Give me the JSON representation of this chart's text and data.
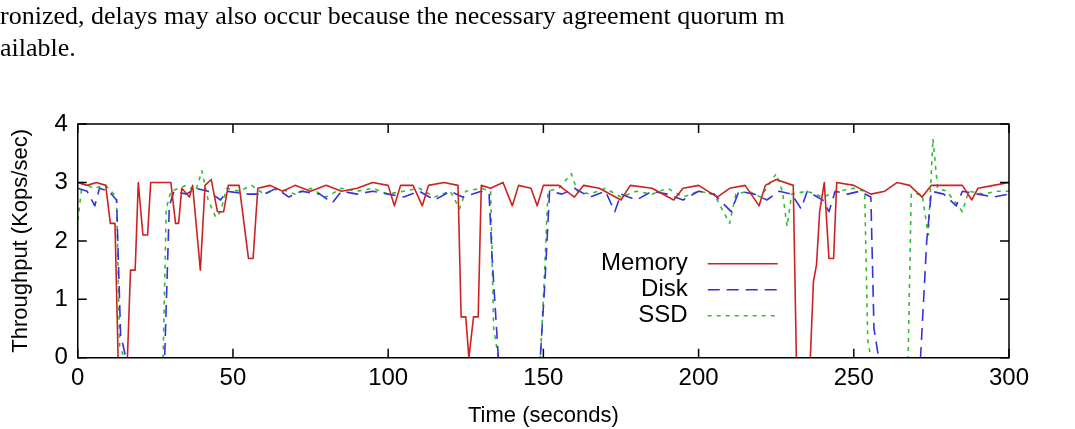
{
  "chart_data": {
    "type": "line",
    "xlabel": "Time (seconds)",
    "ylabel": "Throughput (Kops/sec)",
    "annotations": [
      "ronized, delays may also occur because the necessary agreement quorum m",
      "ailable."
    ],
    "xlim": [
      0,
      300
    ],
    "xticks": [
      0,
      50,
      100,
      150,
      200,
      250,
      300
    ],
    "ylim": [
      0,
      4
    ],
    "yticks": [
      0,
      1,
      2,
      3,
      4
    ],
    "grid": false,
    "legend": "bottom right",
    "marker": "none",
    "series": [
      {
        "name": "Memory",
        "color": "#cc2222",
        "line_style": "solid",
        "x": [
          0,
          3,
          6,
          9,
          10.5,
          12,
          13,
          16,
          17,
          18.5,
          19.5,
          21,
          22.5,
          23.5,
          30,
          31.5,
          32.5,
          33.5,
          36,
          37,
          39.5,
          41,
          43,
          45,
          47,
          48.5,
          52,
          55,
          56.5,
          58,
          62,
          66,
          70,
          75,
          80,
          85,
          90,
          95,
          100,
          102,
          104,
          108,
          111,
          113,
          118,
          122.5,
          123.5,
          125,
          126,
          127.5,
          129,
          130,
          133,
          137,
          140,
          142,
          146,
          148,
          150,
          155,
          160,
          163,
          168,
          175,
          178,
          185,
          192,
          195,
          200,
          206,
          210,
          215,
          219.5,
          221.5,
          225,
          230.5,
          231.5,
          236,
          237,
          238,
          239,
          240.5,
          242,
          243.5,
          244.5,
          250,
          255.5,
          260,
          264,
          268,
          272,
          275,
          280,
          285,
          288,
          290,
          295,
          300
        ],
        "values": [
          3.0,
          2.95,
          3.0,
          2.95,
          2.3,
          2.3,
          0,
          0,
          1.5,
          1.5,
          3.0,
          2.1,
          2.1,
          3.0,
          3.0,
          2.3,
          2.3,
          2.9,
          2.75,
          2.95,
          1.5,
          2.95,
          3.05,
          2.5,
          2.5,
          2.95,
          2.95,
          1.7,
          1.7,
          2.9,
          2.95,
          2.85,
          2.95,
          2.85,
          2.95,
          2.85,
          2.9,
          3.0,
          2.95,
          2.6,
          2.95,
          2.95,
          2.6,
          2.95,
          3.0,
          2.95,
          0.7,
          0.7,
          0,
          0.7,
          0.7,
          2.95,
          2.9,
          3.0,
          2.6,
          2.95,
          2.9,
          2.6,
          2.95,
          2.95,
          2.75,
          2.95,
          2.9,
          2.7,
          2.95,
          2.9,
          2.7,
          2.9,
          2.95,
          2.75,
          2.9,
          2.95,
          2.6,
          2.95,
          3.05,
          2.95,
          0,
          0,
          1.3,
          1.6,
          2.5,
          3.0,
          1.7,
          1.7,
          3.0,
          2.95,
          2.8,
          2.85,
          3.0,
          2.95,
          2.75,
          2.95,
          2.95,
          2.95,
          2.7,
          2.9,
          2.95,
          3.0
        ]
      },
      {
        "name": "Disk",
        "color": "#3333dd",
        "line_style": "dashed",
        "x": [
          0,
          3,
          5.5,
          7,
          10,
          12.5,
          13.8,
          15.5,
          28,
          29.5,
          31,
          35,
          38,
          42,
          46,
          48,
          55,
          60,
          64,
          68,
          72,
          78,
          82,
          85,
          90,
          95,
          100,
          105,
          110,
          115,
          120,
          124,
          127,
          130,
          132.5,
          133.5,
          135.5,
          149,
          150.5,
          152,
          156,
          160,
          165,
          170,
          173,
          175,
          180,
          185,
          190,
          195,
          200,
          205,
          210.5,
          213,
          218,
          222,
          226,
          230,
          233,
          235,
          240,
          242,
          244,
          248,
          252,
          255.5,
          256.5,
          258,
          271.5,
          273.5,
          275,
          279,
          283,
          285,
          290,
          295,
          300
        ],
        "values": [
          2.9,
          2.85,
          2.6,
          2.9,
          2.85,
          2.7,
          0.4,
          0,
          0,
          2.6,
          2.85,
          2.8,
          2.9,
          2.85,
          2.7,
          2.85,
          2.8,
          2.8,
          2.9,
          2.75,
          2.85,
          2.8,
          2.65,
          2.85,
          2.8,
          2.85,
          2.8,
          2.75,
          2.85,
          2.7,
          2.85,
          2.75,
          2.8,
          2.85,
          2.8,
          1.7,
          0,
          0,
          1.3,
          2.85,
          2.8,
          2.9,
          2.75,
          2.85,
          2.5,
          2.8,
          2.7,
          2.85,
          2.8,
          2.7,
          2.85,
          2.8,
          2.5,
          2.85,
          2.8,
          2.7,
          2.85,
          2.8,
          2.55,
          2.85,
          2.7,
          2.5,
          2.85,
          2.8,
          2.85,
          2.75,
          0.5,
          0,
          0,
          2.0,
          2.85,
          2.8,
          2.6,
          2.85,
          2.8,
          2.75,
          2.8
        ]
      },
      {
        "name": "SSD",
        "color": "#33bb33",
        "line_style": "dotted",
        "x": [
          0,
          1.5,
          5,
          9,
          12.5,
          13.5,
          15,
          27.5,
          28.5,
          30,
          35,
          38,
          40,
          42,
          44.5,
          46,
          48,
          52,
          56,
          60,
          65,
          70,
          75,
          80,
          85,
          90,
          95,
          100,
          105,
          110,
          115,
          120,
          123,
          125,
          130,
          133,
          134,
          135.5,
          149,
          150,
          151.5,
          155,
          159,
          161,
          165,
          170,
          175,
          180,
          185,
          190,
          195,
          200,
          205,
          210,
          212,
          216,
          220,
          225,
          227,
          228.5,
          230,
          235,
          240,
          245,
          250,
          253.5,
          254.5,
          255.5,
          267.5,
          268.5,
          272,
          274,
          275.5,
          277,
          280,
          285,
          287,
          292,
          296,
          300
        ],
        "values": [
          2.35,
          3.0,
          2.9,
          2.95,
          2.75,
          0.2,
          0,
          0,
          2.55,
          2.85,
          2.95,
          2.85,
          3.2,
          2.7,
          2.4,
          2.5,
          2.9,
          2.85,
          2.95,
          2.8,
          2.9,
          2.8,
          2.9,
          2.75,
          2.9,
          2.85,
          2.9,
          2.8,
          2.85,
          2.9,
          2.75,
          2.85,
          2.55,
          2.85,
          2.9,
          2.85,
          0.5,
          0,
          0,
          1.0,
          2.85,
          2.9,
          3.15,
          2.85,
          2.8,
          2.9,
          2.75,
          2.85,
          2.8,
          2.9,
          2.75,
          2.85,
          2.8,
          2.3,
          2.8,
          2.85,
          2.75,
          3.15,
          2.85,
          2.25,
          2.8,
          2.85,
          2.75,
          2.85,
          2.9,
          2.85,
          0.3,
          0,
          0,
          2.8,
          2.8,
          2.1,
          3.75,
          2.9,
          2.85,
          2.5,
          2.85,
          2.8,
          2.85,
          2.85
        ]
      }
    ]
  }
}
